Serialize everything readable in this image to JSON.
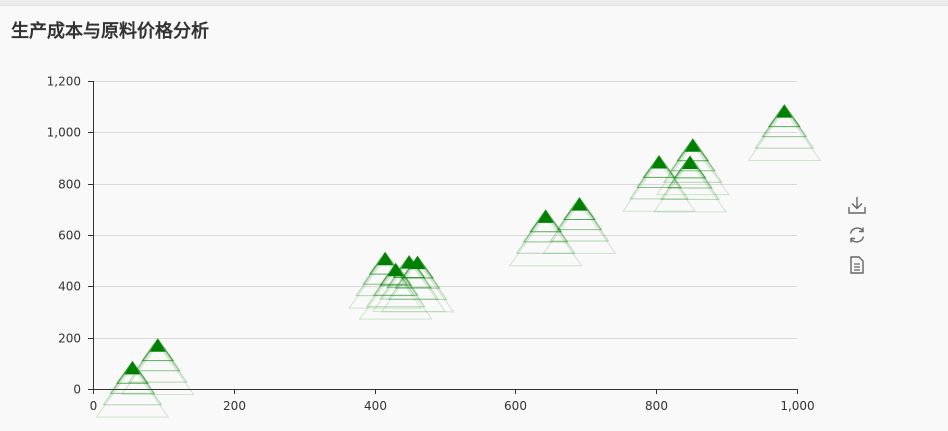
{
  "title": "生产成本与原料价格分析",
  "toolbox": {
    "items": [
      {
        "name": "download-icon"
      },
      {
        "name": "refresh-icon"
      },
      {
        "name": "data-view-icon"
      }
    ]
  },
  "colors": {
    "series": "#008000",
    "grid": "#d9d9d9",
    "axis": "#333333",
    "text": "#333333",
    "toolbox_icon": "#666666"
  },
  "chart_data": {
    "type": "scatter",
    "title": "生产成本与原料价格分析",
    "symbol": "triangle-with-ripple",
    "xlim": [
      0,
      1000
    ],
    "ylim": [
      0,
      1200
    ],
    "x_ticks": [
      0,
      200,
      400,
      600,
      800,
      1000
    ],
    "y_ticks": [
      0,
      200,
      400,
      600,
      800,
      1000,
      1200
    ],
    "x_tick_labels": [
      "0",
      "200",
      "400",
      "600",
      "800",
      "1,000"
    ],
    "y_tick_labels": [
      "0",
      "200",
      "400",
      "600",
      "800",
      "1,000",
      "1,200"
    ],
    "grid": true,
    "points": [
      {
        "x": 56,
        "y": 80
      },
      {
        "x": 92,
        "y": 168
      },
      {
        "x": 415,
        "y": 505
      },
      {
        "x": 430,
        "y": 462
      },
      {
        "x": 449,
        "y": 492
      },
      {
        "x": 461,
        "y": 490
      },
      {
        "x": 643,
        "y": 670
      },
      {
        "x": 691,
        "y": 718
      },
      {
        "x": 804,
        "y": 882
      },
      {
        "x": 848,
        "y": 880
      },
      {
        "x": 852,
        "y": 947
      },
      {
        "x": 982,
        "y": 1080
      }
    ]
  }
}
